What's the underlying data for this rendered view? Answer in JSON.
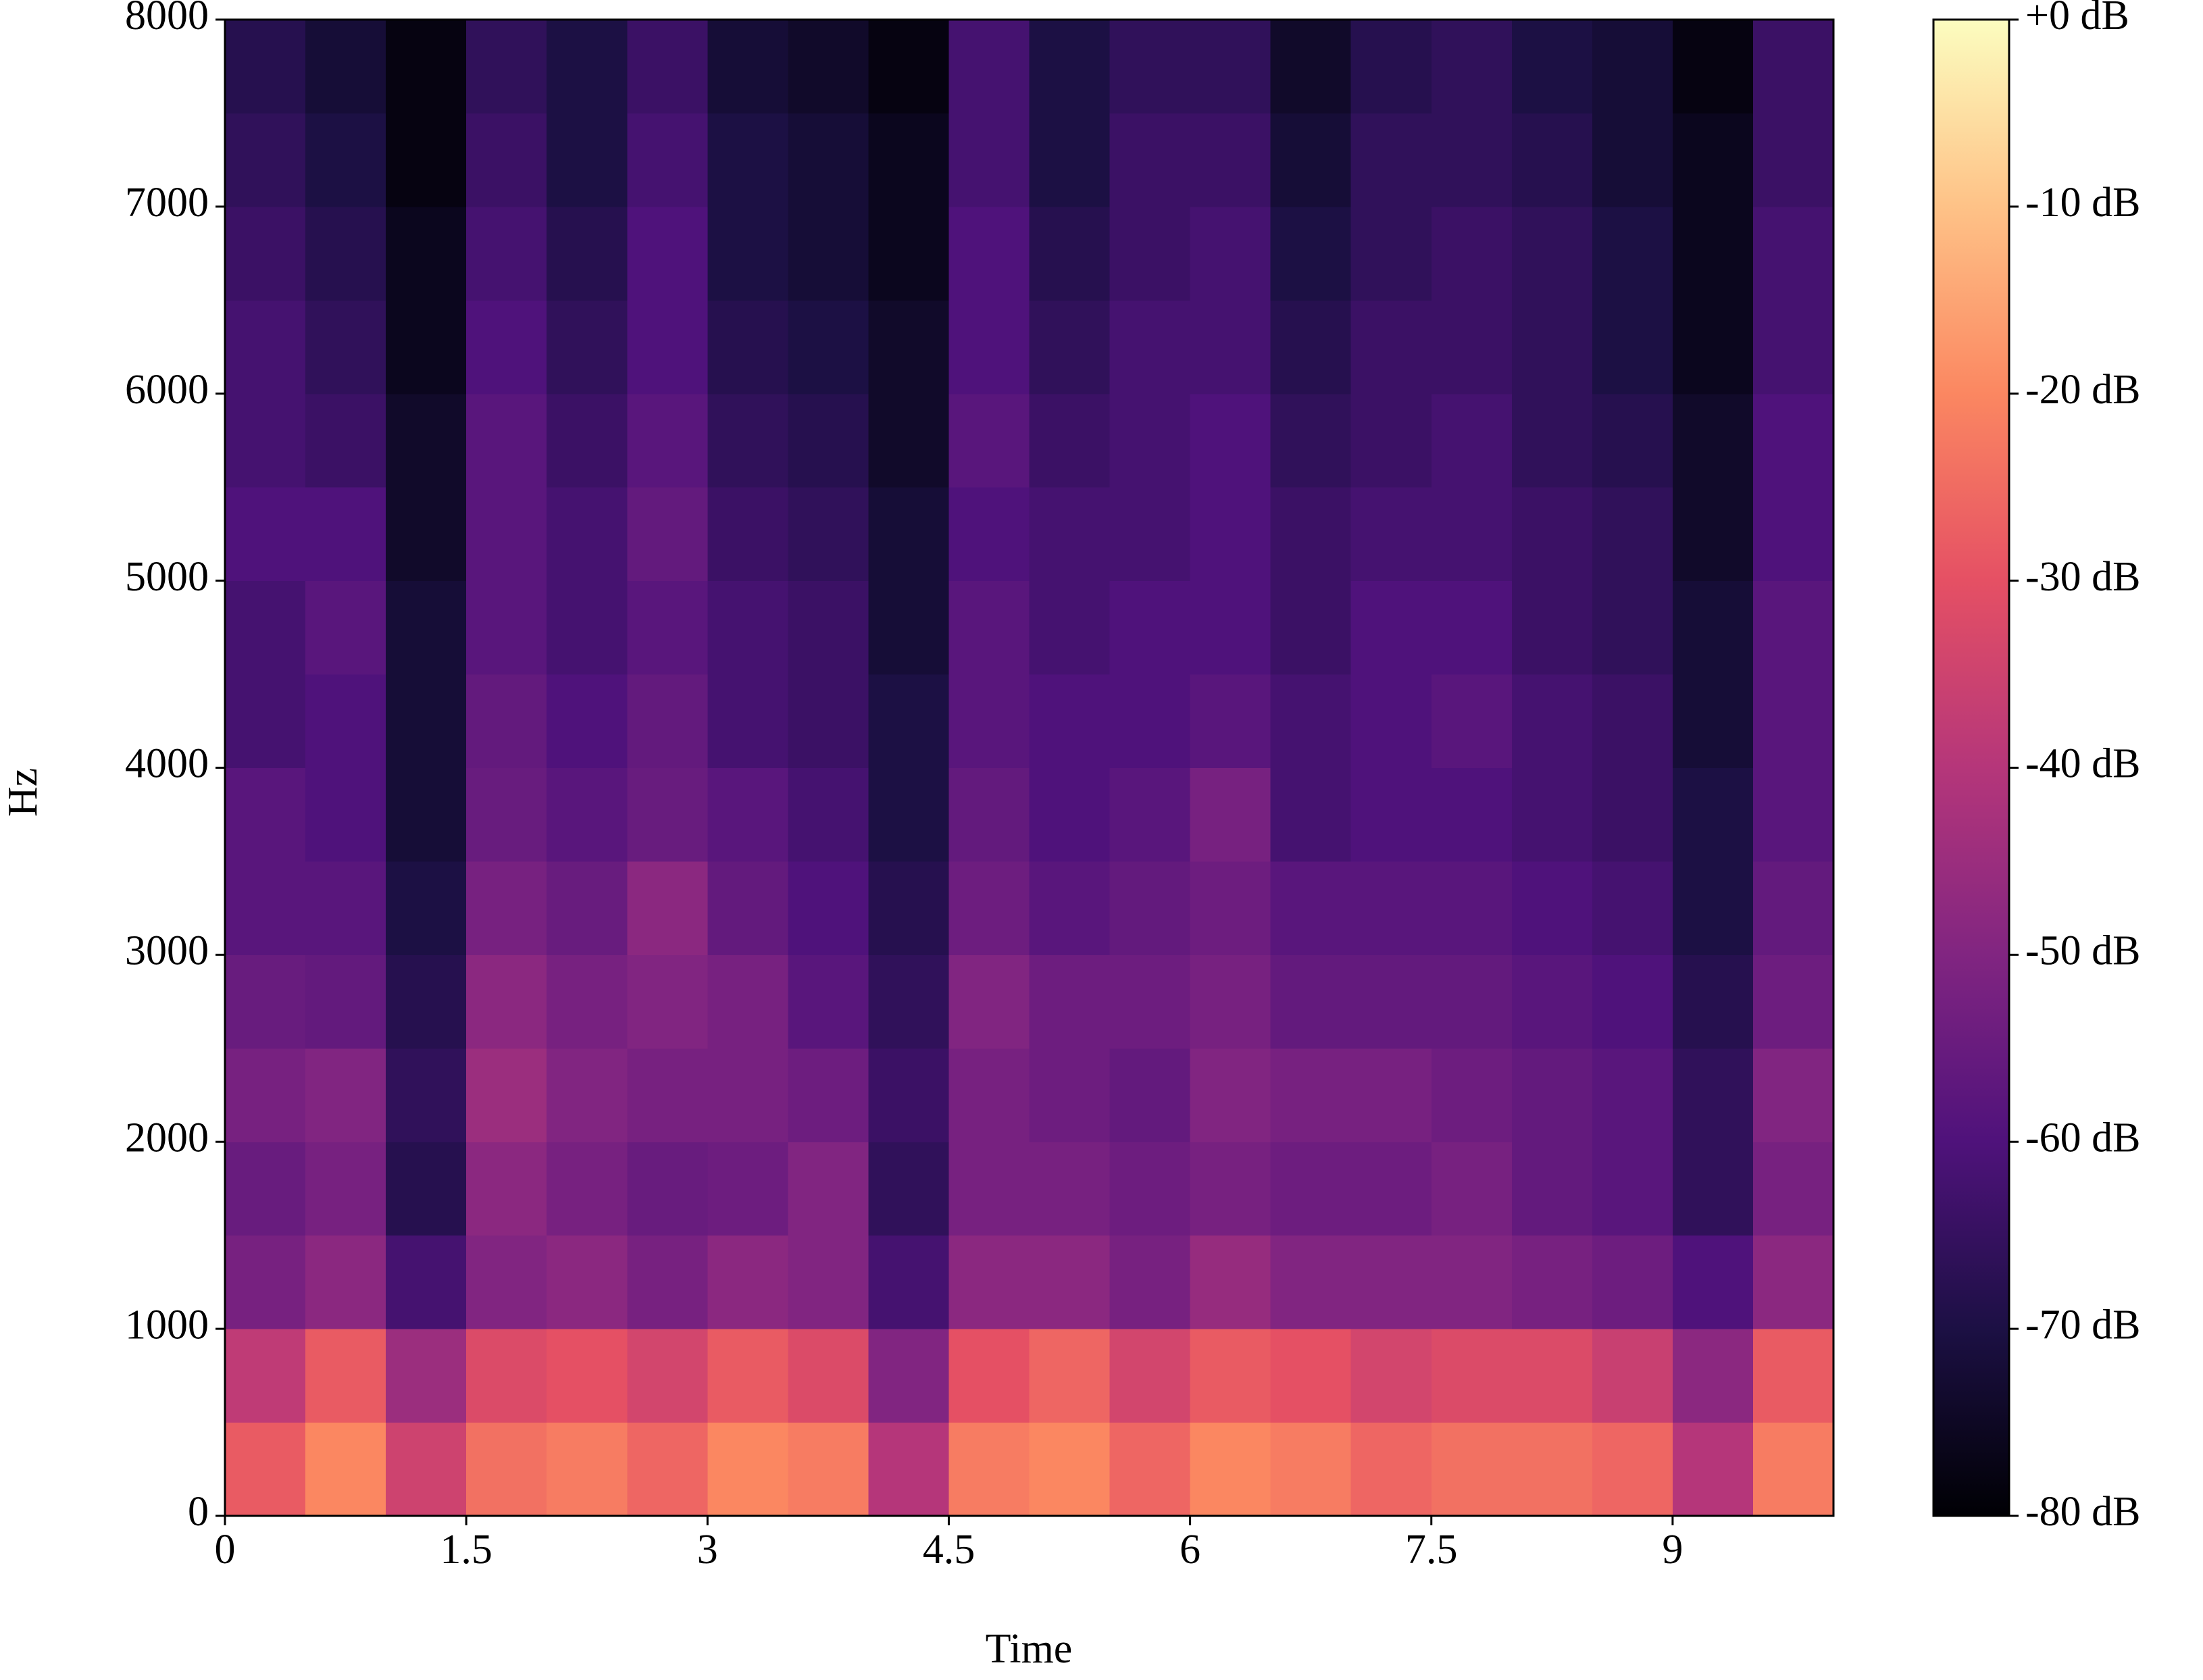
{
  "chart_data": {
    "type": "spectrogram",
    "x_label": "Time",
    "y_label": "Hz",
    "xlim": [
      0,
      10.0
    ],
    "ylim": [
      0,
      8000
    ],
    "xticks": [
      0,
      1.5,
      3,
      4.5,
      6,
      7.5,
      9
    ],
    "yticks": [
      0,
      1000,
      2000,
      3000,
      4000,
      5000,
      6000,
      7000,
      8000
    ],
    "x_bins": [
      0,
      0.5,
      1,
      1.5,
      2,
      2.5,
      3,
      3.5,
      4,
      4.5,
      5,
      5.5,
      6,
      6.5,
      7,
      7.5,
      8,
      8.5,
      9,
      9.5,
      10
    ],
    "y_bins": [
      0,
      500,
      1000,
      1500,
      2000,
      2500,
      3000,
      3500,
      4000,
      4500,
      5000,
      5500,
      6000,
      6500,
      7000,
      7500,
      8000
    ],
    "values": [
      [
        -28,
        -38,
        -52,
        -55,
        -52,
        -55,
        -58,
        -58,
        -62,
        -62,
        -60,
        -62,
        -62,
        -64,
        -66,
        -68
      ],
      [
        -20,
        -28,
        -48,
        -52,
        -50,
        -56,
        -58,
        -60,
        -60,
        -58,
        -60,
        -64,
        -66,
        -68,
        -70,
        -72
      ],
      [
        -35,
        -45,
        -62,
        -68,
        -66,
        -68,
        -70,
        -72,
        -72,
        -72,
        -74,
        -74,
        -76,
        -76,
        -78,
        -78
      ],
      [
        -24,
        -32,
        -50,
        -48,
        -45,
        -48,
        -52,
        -55,
        -56,
        -58,
        -58,
        -58,
        -60,
        -62,
        -64,
        -66
      ],
      [
        -22,
        -30,
        -48,
        -52,
        -50,
        -52,
        -55,
        -58,
        -60,
        -62,
        -62,
        -64,
        -66,
        -68,
        -70,
        -70
      ],
      [
        -26,
        -34,
        -52,
        -55,
        -52,
        -50,
        -48,
        -55,
        -56,
        -58,
        -56,
        -58,
        -60,
        -60,
        -62,
        -64
      ],
      [
        -20,
        -28,
        -48,
        -54,
        -52,
        -52,
        -56,
        -58,
        -62,
        -62,
        -64,
        -66,
        -68,
        -70,
        -70,
        -72
      ],
      [
        -22,
        -32,
        -50,
        -50,
        -54,
        -58,
        -60,
        -62,
        -64,
        -64,
        -66,
        -68,
        -70,
        -72,
        -72,
        -74
      ],
      [
        -40,
        -50,
        -62,
        -66,
        -64,
        -66,
        -68,
        -70,
        -70,
        -72,
        -72,
        -74,
        -74,
        -76,
        -76,
        -78
      ],
      [
        -22,
        -30,
        -48,
        -52,
        -52,
        -50,
        -54,
        -56,
        -58,
        -58,
        -60,
        -58,
        -60,
        -60,
        -62,
        -62
      ],
      [
        -20,
        -26,
        -48,
        -52,
        -54,
        -54,
        -58,
        -60,
        -60,
        -62,
        -62,
        -64,
        -66,
        -68,
        -70,
        -70
      ],
      [
        -26,
        -34,
        -52,
        -54,
        -56,
        -54,
        -56,
        -58,
        -60,
        -60,
        -62,
        -62,
        -62,
        -64,
        -64,
        -66
      ],
      [
        -20,
        -28,
        -46,
        -52,
        -50,
        -52,
        -54,
        -52,
        -58,
        -60,
        -60,
        -60,
        -62,
        -62,
        -64,
        -66
      ],
      [
        -22,
        -30,
        -50,
        -54,
        -52,
        -56,
        -58,
        -62,
        -62,
        -64,
        -64,
        -66,
        -68,
        -70,
        -72,
        -74
      ],
      [
        -26,
        -34,
        -50,
        -54,
        -52,
        -56,
        -58,
        -60,
        -60,
        -60,
        -62,
        -64,
        -64,
        -66,
        -66,
        -68
      ],
      [
        -24,
        -32,
        -50,
        -52,
        -54,
        -56,
        -58,
        -60,
        -58,
        -60,
        -62,
        -62,
        -64,
        -64,
        -66,
        -66
      ],
      [
        -24,
        -32,
        -52,
        -56,
        -56,
        -58,
        -60,
        -62,
        -62,
        -64,
        -64,
        -66,
        -66,
        -66,
        -68,
        -70
      ],
      [
        -26,
        -36,
        -54,
        -58,
        -58,
        -60,
        -62,
        -64,
        -64,
        -66,
        -66,
        -68,
        -70,
        -70,
        -72,
        -72
      ],
      [
        -40,
        -48,
        -60,
        -66,
        -66,
        -68,
        -70,
        -70,
        -72,
        -72,
        -74,
        -74,
        -76,
        -76,
        -76,
        -78
      ],
      [
        -22,
        -28,
        -48,
        -52,
        -50,
        -54,
        -56,
        -58,
        -58,
        -58,
        -60,
        -60,
        -62,
        -62,
        -64,
        -64
      ]
    ],
    "zlim": [
      -80,
      0
    ],
    "colorbar_ticks": [
      {
        "value": 0,
        "label": "+0 dB"
      },
      {
        "value": -10,
        "label": "-10 dB"
      },
      {
        "value": -20,
        "label": "-20 dB"
      },
      {
        "value": -30,
        "label": "-30 dB"
      },
      {
        "value": -40,
        "label": "-40 dB"
      },
      {
        "value": -50,
        "label": "-50 dB"
      },
      {
        "value": -60,
        "label": "-60 dB"
      },
      {
        "value": -70,
        "label": "-70 dB"
      },
      {
        "value": -80,
        "label": "-80 dB"
      }
    ],
    "colormap": [
      "#000004",
      "#1c1044",
      "#4f127b",
      "#812581",
      "#b5367a",
      "#e55064",
      "#fb8761",
      "#fec287",
      "#fcfdbf"
    ]
  }
}
